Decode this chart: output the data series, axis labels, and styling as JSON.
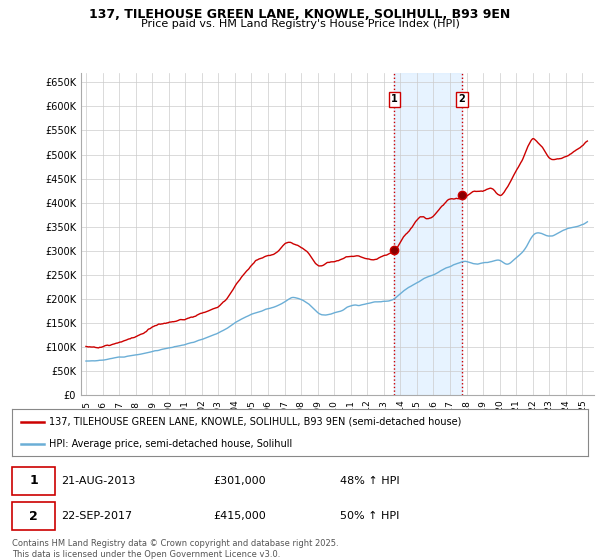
{
  "title_line1": "137, TILEHOUSE GREEN LANE, KNOWLE, SOLIHULL, B93 9EN",
  "title_line2": "Price paid vs. HM Land Registry's House Price Index (HPI)",
  "ylabel_ticks": [
    "£0",
    "£50K",
    "£100K",
    "£150K",
    "£200K",
    "£250K",
    "£300K",
    "£350K",
    "£400K",
    "£450K",
    "£500K",
    "£550K",
    "£600K",
    "£650K"
  ],
  "ytick_values": [
    0,
    50000,
    100000,
    150000,
    200000,
    250000,
    300000,
    350000,
    400000,
    450000,
    500000,
    550000,
    600000,
    650000
  ],
  "xtick_years": [
    "1995",
    "1996",
    "1997",
    "1998",
    "1999",
    "2000",
    "2001",
    "2002",
    "2003",
    "2004",
    "2005",
    "2006",
    "2007",
    "2008",
    "2009",
    "2010",
    "2011",
    "2012",
    "2013",
    "2014",
    "2015",
    "2016",
    "2017",
    "2018",
    "2019",
    "2020",
    "2021",
    "2022",
    "2023",
    "2024",
    "2025"
  ],
  "hpi_color": "#6baed6",
  "price_color": "#cc0000",
  "purchase1_date": 2013.64,
  "purchase1_price": 301000,
  "purchase2_date": 2017.73,
  "purchase2_price": 415000,
  "shade_color": "#ddeeff",
  "vline_color": "#cc0000",
  "background_color": "#ffffff",
  "grid_color": "#cccccc",
  "legend_line1": "137, TILEHOUSE GREEN LANE, KNOWLE, SOLIHULL, B93 9EN (semi-detached house)",
  "legend_line2": "HPI: Average price, semi-detached house, Solihull",
  "footer": "Contains HM Land Registry data © Crown copyright and database right 2025.\nThis data is licensed under the Open Government Licence v3.0.",
  "xlim_left": 1994.7,
  "xlim_right": 2025.7,
  "ylim_top": 670000,
  "hpi_waypoints_x": [
    1995.0,
    1996.0,
    1997.0,
    1998.0,
    1999.0,
    2000.0,
    2001.0,
    2002.0,
    2003.0,
    2004.0,
    2005.0,
    2006.0,
    2007.0,
    2007.5,
    2008.0,
    2008.5,
    2009.0,
    2009.5,
    2010.0,
    2010.5,
    2011.0,
    2011.5,
    2012.0,
    2012.5,
    2013.0,
    2013.5,
    2014.0,
    2014.5,
    2015.0,
    2015.5,
    2016.0,
    2016.5,
    2017.0,
    2017.5,
    2018.0,
    2018.5,
    2019.0,
    2019.5,
    2020.0,
    2020.5,
    2021.0,
    2021.5,
    2022.0,
    2022.5,
    2023.0,
    2023.5,
    2024.0,
    2024.5,
    2025.0
  ],
  "hpi_waypoints_y": [
    70000,
    73000,
    78000,
    84000,
    91000,
    99000,
    108000,
    120000,
    135000,
    155000,
    172000,
    185000,
    200000,
    210000,
    205000,
    195000,
    178000,
    172000,
    175000,
    180000,
    190000,
    192000,
    195000,
    198000,
    200000,
    203000,
    215000,
    228000,
    238000,
    248000,
    256000,
    265000,
    272000,
    278000,
    282000,
    278000,
    280000,
    282000,
    285000,
    278000,
    292000,
    310000,
    340000,
    345000,
    340000,
    345000,
    355000,
    360000,
    365000
  ],
  "price_waypoints_x": [
    1995.0,
    1996.0,
    1997.0,
    1997.5,
    1998.0,
    1998.5,
    1999.0,
    1999.5,
    2000.0,
    2000.5,
    2001.0,
    2001.5,
    2002.0,
    2002.5,
    2003.0,
    2003.5,
    2004.0,
    2004.5,
    2005.0,
    2005.5,
    2006.0,
    2006.5,
    2007.0,
    2007.3,
    2007.6,
    2008.0,
    2008.5,
    2009.0,
    2009.5,
    2010.0,
    2010.5,
    2011.0,
    2011.5,
    2012.0,
    2012.5,
    2013.0,
    2013.5,
    2013.64,
    2014.0,
    2014.5,
    2015.0,
    2015.3,
    2015.6,
    2016.0,
    2016.5,
    2017.0,
    2017.5,
    2017.73,
    2018.0,
    2018.5,
    2019.0,
    2019.5,
    2020.0,
    2020.5,
    2021.0,
    2021.5,
    2022.0,
    2022.3,
    2022.6,
    2023.0,
    2023.5,
    2024.0,
    2024.5,
    2025.0
  ],
  "price_waypoints_y": [
    100000,
    103000,
    112000,
    118000,
    125000,
    130000,
    138000,
    143000,
    148000,
    153000,
    158000,
    162000,
    168000,
    175000,
    183000,
    200000,
    225000,
    245000,
    265000,
    278000,
    285000,
    292000,
    310000,
    315000,
    312000,
    305000,
    290000,
    265000,
    268000,
    272000,
    278000,
    282000,
    285000,
    280000,
    282000,
    290000,
    298000,
    301000,
    320000,
    345000,
    370000,
    378000,
    372000,
    380000,
    400000,
    415000,
    413000,
    415000,
    420000,
    430000,
    430000,
    435000,
    420000,
    440000,
    475000,
    510000,
    545000,
    540000,
    530000,
    510000,
    505000,
    510000,
    520000,
    535000
  ]
}
